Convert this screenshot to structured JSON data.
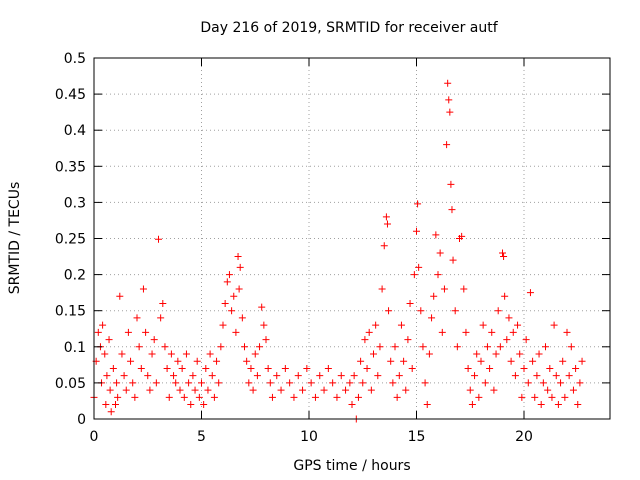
{
  "chart_data": {
    "type": "scatter",
    "title": "Day 216 of 2019, SRMTID for receiver autf",
    "xlabel": "GPS time / hours",
    "ylabel": "SRMTID / TECUs",
    "xlim": [
      0,
      24
    ],
    "ylim": [
      0,
      0.5
    ],
    "grid": true,
    "x_ticks": [
      0,
      5,
      10,
      15,
      20
    ],
    "x_tick_labels": [
      "0",
      "5",
      "10",
      "15",
      "20"
    ],
    "y_ticks": [
      0,
      0.05,
      0.1,
      0.15,
      0.2,
      0.25,
      0.3,
      0.35,
      0.4,
      0.45,
      0.5
    ],
    "y_tick_labels": [
      "0",
      "0.05",
      "0.1",
      "0.15",
      "0.2",
      "0.25",
      "0.3",
      "0.35",
      "0.4",
      "0.45",
      "0.5"
    ],
    "marker": "+",
    "color": "#ff0000",
    "series": [
      {
        "name": "SRMTID",
        "points": [
          [
            0.0,
            0.03
          ],
          [
            0.1,
            0.08
          ],
          [
            0.2,
            0.12
          ],
          [
            0.3,
            0.1
          ],
          [
            0.35,
            0.05
          ],
          [
            0.4,
            0.13
          ],
          [
            0.5,
            0.09
          ],
          [
            0.55,
            0.02
          ],
          [
            0.6,
            0.06
          ],
          [
            0.7,
            0.11
          ],
          [
            0.75,
            0.04
          ],
          [
            0.8,
            0.01
          ],
          [
            0.9,
            0.07
          ],
          [
            1.0,
            0.02
          ],
          [
            1.05,
            0.05
          ],
          [
            1.1,
            0.03
          ],
          [
            1.2,
            0.17
          ],
          [
            1.3,
            0.09
          ],
          [
            1.4,
            0.06
          ],
          [
            1.5,
            0.04
          ],
          [
            1.6,
            0.12
          ],
          [
            1.7,
            0.08
          ],
          [
            1.8,
            0.05
          ],
          [
            1.9,
            0.03
          ],
          [
            2.0,
            0.14
          ],
          [
            2.1,
            0.1
          ],
          [
            2.2,
            0.07
          ],
          [
            2.3,
            0.18
          ],
          [
            2.4,
            0.12
          ],
          [
            2.5,
            0.06
          ],
          [
            2.6,
            0.04
          ],
          [
            2.7,
            0.09
          ],
          [
            2.8,
            0.11
          ],
          [
            2.9,
            0.05
          ],
          [
            3.0,
            0.249
          ],
          [
            3.1,
            0.14
          ],
          [
            3.2,
            0.16
          ],
          [
            3.3,
            0.1
          ],
          [
            3.4,
            0.07
          ],
          [
            3.5,
            0.03
          ],
          [
            3.6,
            0.09
          ],
          [
            3.7,
            0.06
          ],
          [
            3.8,
            0.05
          ],
          [
            3.9,
            0.08
          ],
          [
            4.0,
            0.04
          ],
          [
            4.1,
            0.07
          ],
          [
            4.2,
            0.03
          ],
          [
            4.3,
            0.09
          ],
          [
            4.4,
            0.05
          ],
          [
            4.5,
            0.02
          ],
          [
            4.6,
            0.06
          ],
          [
            4.7,
            0.04
          ],
          [
            4.8,
            0.08
          ],
          [
            4.9,
            0.03
          ],
          [
            5.0,
            0.05
          ],
          [
            5.1,
            0.02
          ],
          [
            5.2,
            0.07
          ],
          [
            5.3,
            0.04
          ],
          [
            5.4,
            0.09
          ],
          [
            5.5,
            0.06
          ],
          [
            5.6,
            0.03
          ],
          [
            5.7,
            0.08
          ],
          [
            5.8,
            0.05
          ],
          [
            5.9,
            0.1
          ],
          [
            6.0,
            0.13
          ],
          [
            6.1,
            0.16
          ],
          [
            6.2,
            0.19
          ],
          [
            6.3,
            0.2
          ],
          [
            6.4,
            0.15
          ],
          [
            6.5,
            0.17
          ],
          [
            6.6,
            0.12
          ],
          [
            6.7,
            0.225
          ],
          [
            6.75,
            0.18
          ],
          [
            6.8,
            0.21
          ],
          [
            6.9,
            0.14
          ],
          [
            7.0,
            0.1
          ],
          [
            7.1,
            0.08
          ],
          [
            7.2,
            0.05
          ],
          [
            7.3,
            0.07
          ],
          [
            7.4,
            0.04
          ],
          [
            7.5,
            0.09
          ],
          [
            7.6,
            0.06
          ],
          [
            7.7,
            0.1
          ],
          [
            7.8,
            0.155
          ],
          [
            7.9,
            0.13
          ],
          [
            8.0,
            0.11
          ],
          [
            8.1,
            0.07
          ],
          [
            8.2,
            0.05
          ],
          [
            8.3,
            0.03
          ],
          [
            8.5,
            0.06
          ],
          [
            8.7,
            0.04
          ],
          [
            8.9,
            0.07
          ],
          [
            9.1,
            0.05
          ],
          [
            9.3,
            0.03
          ],
          [
            9.5,
            0.06
          ],
          [
            9.7,
            0.04
          ],
          [
            9.9,
            0.07
          ],
          [
            10.1,
            0.05
          ],
          [
            10.3,
            0.03
          ],
          [
            10.5,
            0.06
          ],
          [
            10.7,
            0.04
          ],
          [
            10.9,
            0.07
          ],
          [
            11.1,
            0.05
          ],
          [
            11.3,
            0.03
          ],
          [
            11.5,
            0.06
          ],
          [
            11.7,
            0.04
          ],
          [
            11.9,
            0.05
          ],
          [
            12.0,
            0.02
          ],
          [
            12.1,
            0.06
          ],
          [
            12.2,
            0.0
          ],
          [
            12.3,
            0.03
          ],
          [
            12.4,
            0.08
          ],
          [
            12.5,
            0.05
          ],
          [
            12.6,
            0.11
          ],
          [
            12.7,
            0.07
          ],
          [
            12.8,
            0.12
          ],
          [
            12.9,
            0.04
          ],
          [
            13.0,
            0.09
          ],
          [
            13.1,
            0.13
          ],
          [
            13.2,
            0.06
          ],
          [
            13.3,
            0.1
          ],
          [
            13.4,
            0.18
          ],
          [
            13.5,
            0.24
          ],
          [
            13.6,
            0.28
          ],
          [
            13.65,
            0.27
          ],
          [
            13.7,
            0.15
          ],
          [
            13.8,
            0.08
          ],
          [
            13.9,
            0.05
          ],
          [
            14.0,
            0.1
          ],
          [
            14.1,
            0.03
          ],
          [
            14.2,
            0.06
          ],
          [
            14.3,
            0.13
          ],
          [
            14.4,
            0.08
          ],
          [
            14.5,
            0.04
          ],
          [
            14.6,
            0.11
          ],
          [
            14.7,
            0.16
          ],
          [
            14.8,
            0.07
          ],
          [
            14.9,
            0.2
          ],
          [
            15.0,
            0.26
          ],
          [
            15.05,
            0.298
          ],
          [
            15.1,
            0.21
          ],
          [
            15.2,
            0.15
          ],
          [
            15.3,
            0.1
          ],
          [
            15.4,
            0.05
          ],
          [
            15.5,
            0.02
          ],
          [
            15.6,
            0.09
          ],
          [
            15.7,
            0.14
          ],
          [
            15.8,
            0.17
          ],
          [
            15.9,
            0.255
          ],
          [
            16.0,
            0.2
          ],
          [
            16.1,
            0.23
          ],
          [
            16.2,
            0.12
          ],
          [
            16.3,
            0.18
          ],
          [
            16.4,
            0.38
          ],
          [
            16.45,
            0.465
          ],
          [
            16.5,
            0.442
          ],
          [
            16.55,
            0.425
          ],
          [
            16.6,
            0.325
          ],
          [
            16.65,
            0.29
          ],
          [
            16.7,
            0.22
          ],
          [
            16.8,
            0.15
          ],
          [
            16.9,
            0.1
          ],
          [
            17.0,
            0.25
          ],
          [
            17.1,
            0.253
          ],
          [
            17.2,
            0.18
          ],
          [
            17.3,
            0.12
          ],
          [
            17.4,
            0.07
          ],
          [
            17.5,
            0.04
          ],
          [
            17.6,
            0.02
          ],
          [
            17.7,
            0.06
          ],
          [
            17.8,
            0.09
          ],
          [
            17.9,
            0.03
          ],
          [
            18.0,
            0.08
          ],
          [
            18.1,
            0.13
          ],
          [
            18.2,
            0.05
          ],
          [
            18.3,
            0.1
          ],
          [
            18.4,
            0.07
          ],
          [
            18.5,
            0.12
          ],
          [
            18.6,
            0.04
          ],
          [
            18.7,
            0.09
          ],
          [
            18.8,
            0.15
          ],
          [
            18.9,
            0.1
          ],
          [
            19.0,
            0.23
          ],
          [
            19.05,
            0.225
          ],
          [
            19.1,
            0.17
          ],
          [
            19.2,
            0.11
          ],
          [
            19.3,
            0.14
          ],
          [
            19.4,
            0.08
          ],
          [
            19.5,
            0.12
          ],
          [
            19.6,
            0.06
          ],
          [
            19.7,
            0.13
          ],
          [
            19.8,
            0.09
          ],
          [
            19.9,
            0.03
          ],
          [
            20.0,
            0.07
          ],
          [
            20.1,
            0.11
          ],
          [
            20.2,
            0.05
          ],
          [
            20.3,
            0.175
          ],
          [
            20.4,
            0.08
          ],
          [
            20.5,
            0.03
          ],
          [
            20.6,
            0.06
          ],
          [
            20.7,
            0.09
          ],
          [
            20.8,
            0.02
          ],
          [
            20.9,
            0.05
          ],
          [
            21.0,
            0.1
          ],
          [
            21.1,
            0.04
          ],
          [
            21.2,
            0.07
          ],
          [
            21.3,
            0.03
          ],
          [
            21.4,
            0.13
          ],
          [
            21.5,
            0.06
          ],
          [
            21.6,
            0.02
          ],
          [
            21.7,
            0.05
          ],
          [
            21.8,
            0.08
          ],
          [
            21.9,
            0.03
          ],
          [
            22.0,
            0.12
          ],
          [
            22.1,
            0.06
          ],
          [
            22.2,
            0.1
          ],
          [
            22.3,
            0.04
          ],
          [
            22.4,
            0.07
          ],
          [
            22.5,
            0.02
          ],
          [
            22.6,
            0.05
          ],
          [
            22.7,
            0.08
          ]
        ]
      }
    ]
  }
}
